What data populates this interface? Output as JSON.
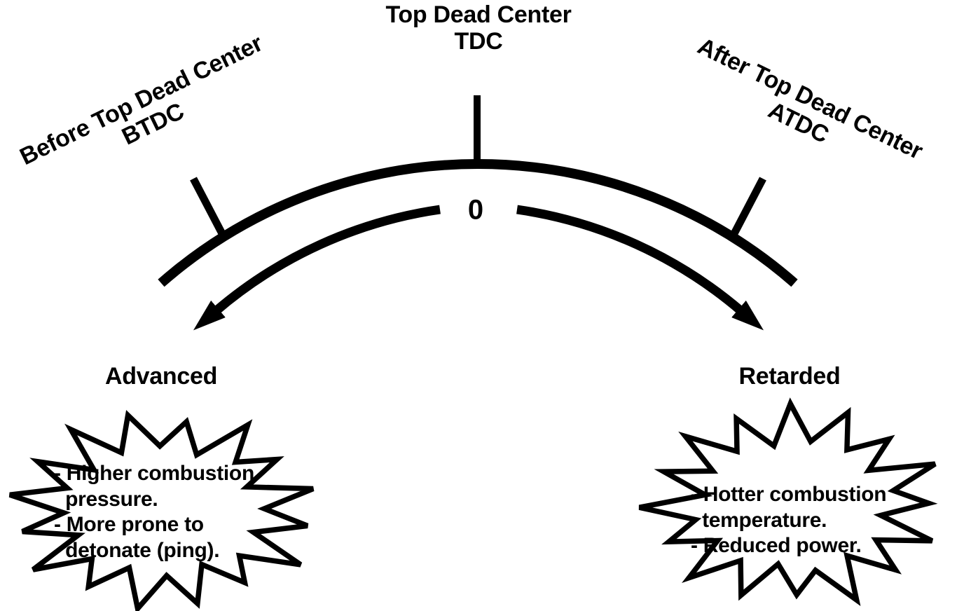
{
  "colors": {
    "ink": "#000000",
    "background": "#ffffff"
  },
  "timing_scale": {
    "top_label": {
      "line1": "Top Dead Center",
      "line2": "TDC"
    },
    "left_label": {
      "line1": "Before Top Dead Center",
      "line2": "BTDC"
    },
    "right_label": {
      "line1": "After Top Dead Center",
      "line2": "ATDC"
    },
    "zero_marker": "0"
  },
  "advanced": {
    "title": "Advanced",
    "notes": "- Higher combustion\n  pressure.\n- More prone to\n  detonate (ping)."
  },
  "retarded": {
    "title": "Retarded",
    "notes": "- Hotter combustion\n  temperature.\n- Reduced power."
  }
}
